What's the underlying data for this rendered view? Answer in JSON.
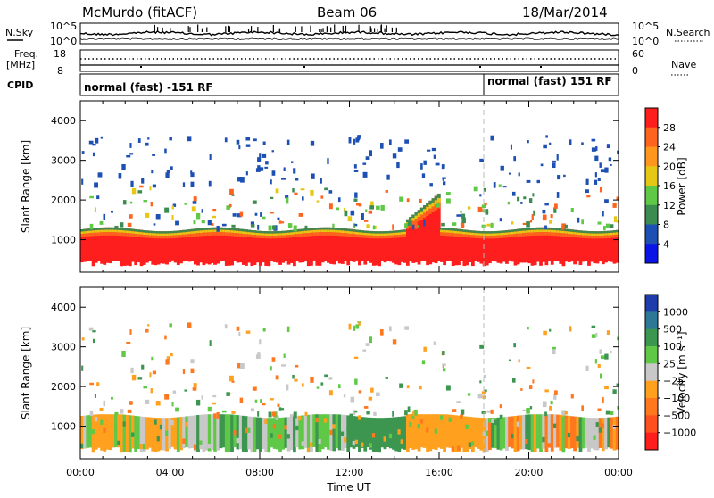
{
  "header": {
    "station": "McMurdo (fitACF)",
    "beam": "Beam 06",
    "date": "18/Mar/2014"
  },
  "noise_panel": {
    "left_label": "N.Sky",
    "right_label": "N.Search",
    "left_ticks": [
      "10^5",
      "10^0"
    ],
    "right_ticks": [
      "10^5",
      "10^0"
    ]
  },
  "freq_panel": {
    "left_label_line1": "Freq.",
    "left_label_line2": "[MHz]",
    "right_label": "Nave",
    "left_ticks": [
      "18",
      "8"
    ],
    "right_ticks": [
      "60",
      "0"
    ]
  },
  "cpid_panel": {
    "label": "CPID",
    "segments": [
      {
        "text": "normal (fast) -151 RF",
        "start_hour": 0
      },
      {
        "text": "normal (fast) 151 RF",
        "start_hour": 18
      }
    ]
  },
  "time_axis": {
    "label": "Time UT",
    "ticks": [
      "00:00",
      "04:00",
      "08:00",
      "12:00",
      "16:00",
      "20:00",
      "00:00"
    ],
    "range_hours": [
      0,
      24
    ]
  },
  "range_axis": {
    "label": "Slant Range [km]",
    "ticks": [
      "1000",
      "2000",
      "3000",
      "4000"
    ],
    "range_km": [
      180,
      4500
    ]
  },
  "chart_data": [
    {
      "type": "heatmap",
      "panel": "power",
      "xlabel": "Time UT",
      "ylabel": "Slant Range [km]",
      "xlim": [
        0,
        24
      ],
      "ylim": [
        180,
        4500
      ],
      "colorbar": {
        "label": "Power [dB]",
        "ticks": [
          "4",
          "8",
          "12",
          "16",
          "20",
          "24",
          "28"
        ],
        "colors": [
          "#0a14e6",
          "#1e50b4",
          "#3c8c50",
          "#5fc846",
          "#e6c814",
          "#ff961e",
          "#ff641e",
          "#ff1e1e"
        ]
      }
    },
    {
      "type": "heatmap",
      "panel": "velocity",
      "xlabel": "Time UT",
      "ylabel": "Slant Range [km]",
      "xlim": [
        0,
        24
      ],
      "ylim": [
        180,
        4500
      ],
      "colorbar": {
        "label": "Velocity [m s⁻¹]",
        "ticks": [
          "1000",
          "500",
          "100",
          "25",
          "−25",
          "−100",
          "−500",
          "−1000"
        ],
        "colors": [
          "#1e3caa",
          "#2d7896",
          "#3c9650",
          "#5fc846",
          "#c8c8c8",
          "#ffa01e",
          "#ff781e",
          "#ff501e",
          "#ff1e1e"
        ]
      }
    }
  ]
}
